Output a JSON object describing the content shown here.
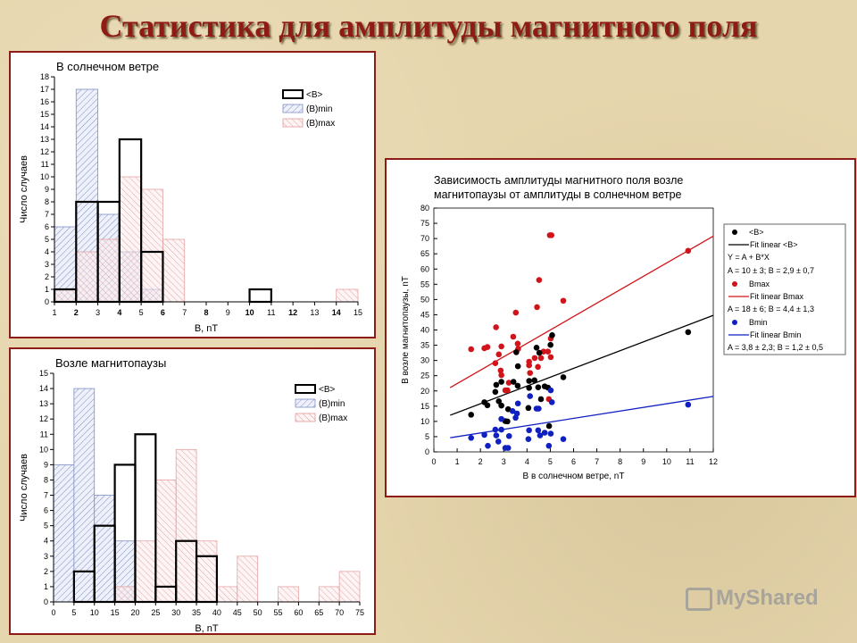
{
  "title": "Статистика для амплитуды магнитного поля",
  "watermark": "MyShared",
  "colors": {
    "title": "#8e1b14",
    "frame": "#8e1b14",
    "bmin": "#7f8fc8",
    "bmax": "#e39a9a",
    "red": "#d0141a",
    "blue": "#1020c0",
    "black": "#000000"
  },
  "chart_data": [
    {
      "type": "bar",
      "title": "В солнечном ветре",
      "xlabel": "B, nT",
      "ylabel": "Число случаев",
      "xlim": [
        1,
        15
      ],
      "ylim": [
        0,
        18
      ],
      "xticks": [
        1,
        2,
        3,
        4,
        5,
        6,
        7,
        8,
        9,
        10,
        11,
        12,
        13,
        14,
        15
      ],
      "yticks": [
        0,
        1,
        2,
        3,
        4,
        5,
        6,
        7,
        8,
        9,
        10,
        11,
        12,
        13,
        14,
        15,
        16,
        17,
        18
      ],
      "bin_width": 1,
      "legend": [
        "<B>",
        "(B)min",
        "(B)max"
      ],
      "legend_position": "top-right",
      "series": [
        {
          "name": "(B)min",
          "bins": [
            [
              1,
              6
            ],
            [
              2,
              17
            ],
            [
              3,
              7
            ],
            [
              4,
              4
            ],
            [
              5,
              1
            ]
          ]
        },
        {
          "name": "(B)max",
          "bins": [
            [
              1,
              1
            ],
            [
              2,
              4
            ],
            [
              3,
              5
            ],
            [
              4,
              10
            ],
            [
              5,
              9
            ],
            [
              6,
              5
            ],
            [
              14,
              1
            ]
          ]
        },
        {
          "name": "<B>",
          "bins": [
            [
              1,
              1
            ],
            [
              2,
              8
            ],
            [
              3,
              8
            ],
            [
              4,
              13
            ],
            [
              5,
              4
            ],
            [
              10,
              1
            ]
          ]
        }
      ]
    },
    {
      "type": "bar",
      "title": "Возле магнитопаузы",
      "xlabel": "B, nT",
      "ylabel": "Число случаев",
      "xlim": [
        0,
        75
      ],
      "ylim": [
        0,
        15
      ],
      "xticks": [
        0,
        5,
        10,
        15,
        20,
        25,
        30,
        35,
        40,
        45,
        50,
        55,
        60,
        65,
        70,
        75
      ],
      "yticks": [
        0,
        1,
        2,
        3,
        4,
        5,
        6,
        7,
        8,
        9,
        10,
        11,
        12,
        13,
        14,
        15
      ],
      "bin_width": 5,
      "legend": [
        "<B>",
        "(B)min",
        "(B)max"
      ],
      "legend_position": "top-right",
      "series": [
        {
          "name": "(B)min",
          "bins": [
            [
              0,
              9
            ],
            [
              5,
              14
            ],
            [
              10,
              7
            ],
            [
              15,
              4
            ]
          ]
        },
        {
          "name": "(B)max",
          "bins": [
            [
              15,
              1
            ],
            [
              20,
              4
            ],
            [
              25,
              8
            ],
            [
              30,
              10
            ],
            [
              35,
              4
            ],
            [
              40,
              1
            ],
            [
              45,
              3
            ],
            [
              55,
              1
            ],
            [
              65,
              1
            ],
            [
              70,
              2
            ]
          ]
        },
        {
          "name": "<B>",
          "bins": [
            [
              5,
              2
            ],
            [
              10,
              5
            ],
            [
              15,
              9
            ],
            [
              20,
              11
            ],
            [
              25,
              1
            ],
            [
              30,
              4
            ],
            [
              35,
              3
            ]
          ]
        }
      ]
    },
    {
      "type": "scatter",
      "title": "Зависимость амплитуды магнитного поля возле магнитопаузы от амплитуды в солнечном ветре",
      "title_lines": [
        "Зависимость амплитуды магнитного поля возле",
        "магнитопаузы от амплитуды в солнечном ветре"
      ],
      "xlabel": "B в солнечном ветре, nT",
      "ylabel": "B возле магнитопаузы, nT",
      "xlim": [
        0,
        12
      ],
      "ylim": [
        0,
        80
      ],
      "xticks": [
        0,
        1,
        2,
        3,
        4,
        5,
        6,
        7,
        8,
        9,
        10,
        11,
        12
      ],
      "yticks": [
        0,
        5,
        10,
        15,
        20,
        25,
        30,
        35,
        40,
        45,
        50,
        55,
        60,
        65,
        70,
        75,
        80
      ],
      "legend_position": "right",
      "legend": [
        {
          "kind": "point",
          "color": "black",
          "label": "<B>"
        },
        {
          "kind": "line",
          "color": "black",
          "label": "Fit linear <B>"
        },
        {
          "kind": "text",
          "label": "Y = A + B*X"
        },
        {
          "kind": "text",
          "label": "A = 10 ± 3; B = 2,9 ± 0,7"
        },
        {
          "kind": "point",
          "color": "red",
          "label": "Bmax"
        },
        {
          "kind": "line",
          "color": "red",
          "label": "Fit linear Bmax"
        },
        {
          "kind": "text",
          "label": "A = 18 ± 6; B = 4,4 ± 1,3"
        },
        {
          "kind": "point",
          "color": "blue",
          "label": "Bmin"
        },
        {
          "kind": "line",
          "color": "blue",
          "label": "Fit linear Bmin"
        },
        {
          "kind": "text",
          "label": "A = 3,8 ± 2,3; B = 1,2 ± 0,5"
        }
      ],
      "fits": [
        {
          "name": "Fit linear <B>",
          "color": "black",
          "A": 10,
          "B": 2.9,
          "x_range": [
            0.7,
            12
          ]
        },
        {
          "name": "Fit linear Bmax",
          "color": "red",
          "A": 18,
          "B": 4.4,
          "x_range": [
            0.7,
            12
          ]
        },
        {
          "name": "Fit linear Bmin",
          "color": "blue",
          "A": 3.8,
          "B": 1.2,
          "x_range": [
            0.7,
            12
          ]
        }
      ],
      "series": [
        {
          "name": "Bmax",
          "color": "red",
          "points": [
            [
              5.05,
              71.1
            ],
            [
              4.98,
              71.1
            ],
            [
              4.52,
              56.4
            ],
            [
              5.56,
              49.6
            ],
            [
              3.52,
              45.7
            ],
            [
              4.43,
              47.5
            ],
            [
              2.67,
              40.9
            ],
            [
              3.41,
              37.8
            ],
            [
              1.6,
              33.7
            ],
            [
              2.17,
              34
            ],
            [
              2.3,
              34.4
            ],
            [
              2.9,
              34.6
            ],
            [
              3.6,
              35.5
            ],
            [
              3.62,
              33.8
            ],
            [
              2.79,
              32
            ],
            [
              5.02,
              37.2
            ],
            [
              2.64,
              29.1
            ],
            [
              4.09,
              29.6
            ],
            [
              4.09,
              28.4
            ],
            [
              4.33,
              30.8
            ],
            [
              4.6,
              30.8
            ],
            [
              4.71,
              32.9
            ],
            [
              4.9,
              32.9
            ],
            [
              5.02,
              31.1
            ],
            [
              4.47,
              27.9
            ],
            [
              2.87,
              26.7
            ],
            [
              2.9,
              25.2
            ],
            [
              4.13,
              25.9
            ],
            [
              3.22,
              22.7
            ],
            [
              3.07,
              20.2
            ],
            [
              3.16,
              20.2
            ],
            [
              4.94,
              17.3
            ],
            [
              10.92,
              66
            ]
          ]
        },
        {
          "name": "<B>",
          "color": "black",
          "points": [
            [
              5.08,
              38.3
            ],
            [
              5.01,
              35.1
            ],
            [
              4.41,
              34.2
            ],
            [
              4.53,
              32.5
            ],
            [
              3.54,
              32.7
            ],
            [
              3.61,
              28.1
            ],
            [
              5.56,
              24.5
            ],
            [
              2.68,
              22
            ],
            [
              2.9,
              23
            ],
            [
              3.42,
              23
            ],
            [
              3.6,
              21.7
            ],
            [
              4.09,
              23.3
            ],
            [
              4.32,
              23.5
            ],
            [
              4.09,
              21
            ],
            [
              4.48,
              21.2
            ],
            [
              4.76,
              21.5
            ],
            [
              4.9,
              21.1
            ],
            [
              2.64,
              19.7
            ],
            [
              2.17,
              16.3
            ],
            [
              2.3,
              15.3
            ],
            [
              2.79,
              16.6
            ],
            [
              2.9,
              15.2
            ],
            [
              1.6,
              12.2
            ],
            [
              4.6,
              17.3
            ],
            [
              4.06,
              14.4
            ],
            [
              3.19,
              14
            ],
            [
              3.07,
              10.1
            ],
            [
              3.16,
              10
            ],
            [
              4.95,
              8.5
            ],
            [
              10.92,
              39.3
            ]
          ]
        },
        {
          "name": "Bmin",
          "color": "blue",
          "points": [
            [
              5.02,
              20.2
            ],
            [
              5.07,
              16.3
            ],
            [
              4.13,
              18.3
            ],
            [
              3.61,
              15.9
            ],
            [
              3.38,
              13.4
            ],
            [
              3.57,
              12.6
            ],
            [
              3.51,
              11.2
            ],
            [
              4.41,
              14.2
            ],
            [
              4.5,
              14.2
            ],
            [
              2.9,
              10.8
            ],
            [
              1.6,
              4.6
            ],
            [
              2.17,
              5.6
            ],
            [
              2.64,
              7.3
            ],
            [
              2.68,
              5.4
            ],
            [
              2.9,
              7.3
            ],
            [
              3.23,
              5.2
            ],
            [
              4.09,
              7.1
            ],
            [
              4.48,
              7.1
            ],
            [
              4.56,
              5.4
            ],
            [
              4.76,
              6.3
            ],
            [
              5.02,
              6
            ],
            [
              5.56,
              4.2
            ],
            [
              4.06,
              4.2
            ],
            [
              2.77,
              3.4
            ],
            [
              2.32,
              2
            ],
            [
              3.07,
              1.3
            ],
            [
              3.19,
              1.3
            ],
            [
              4.94,
              2
            ],
            [
              10.92,
              15.5
            ]
          ]
        }
      ]
    }
  ]
}
